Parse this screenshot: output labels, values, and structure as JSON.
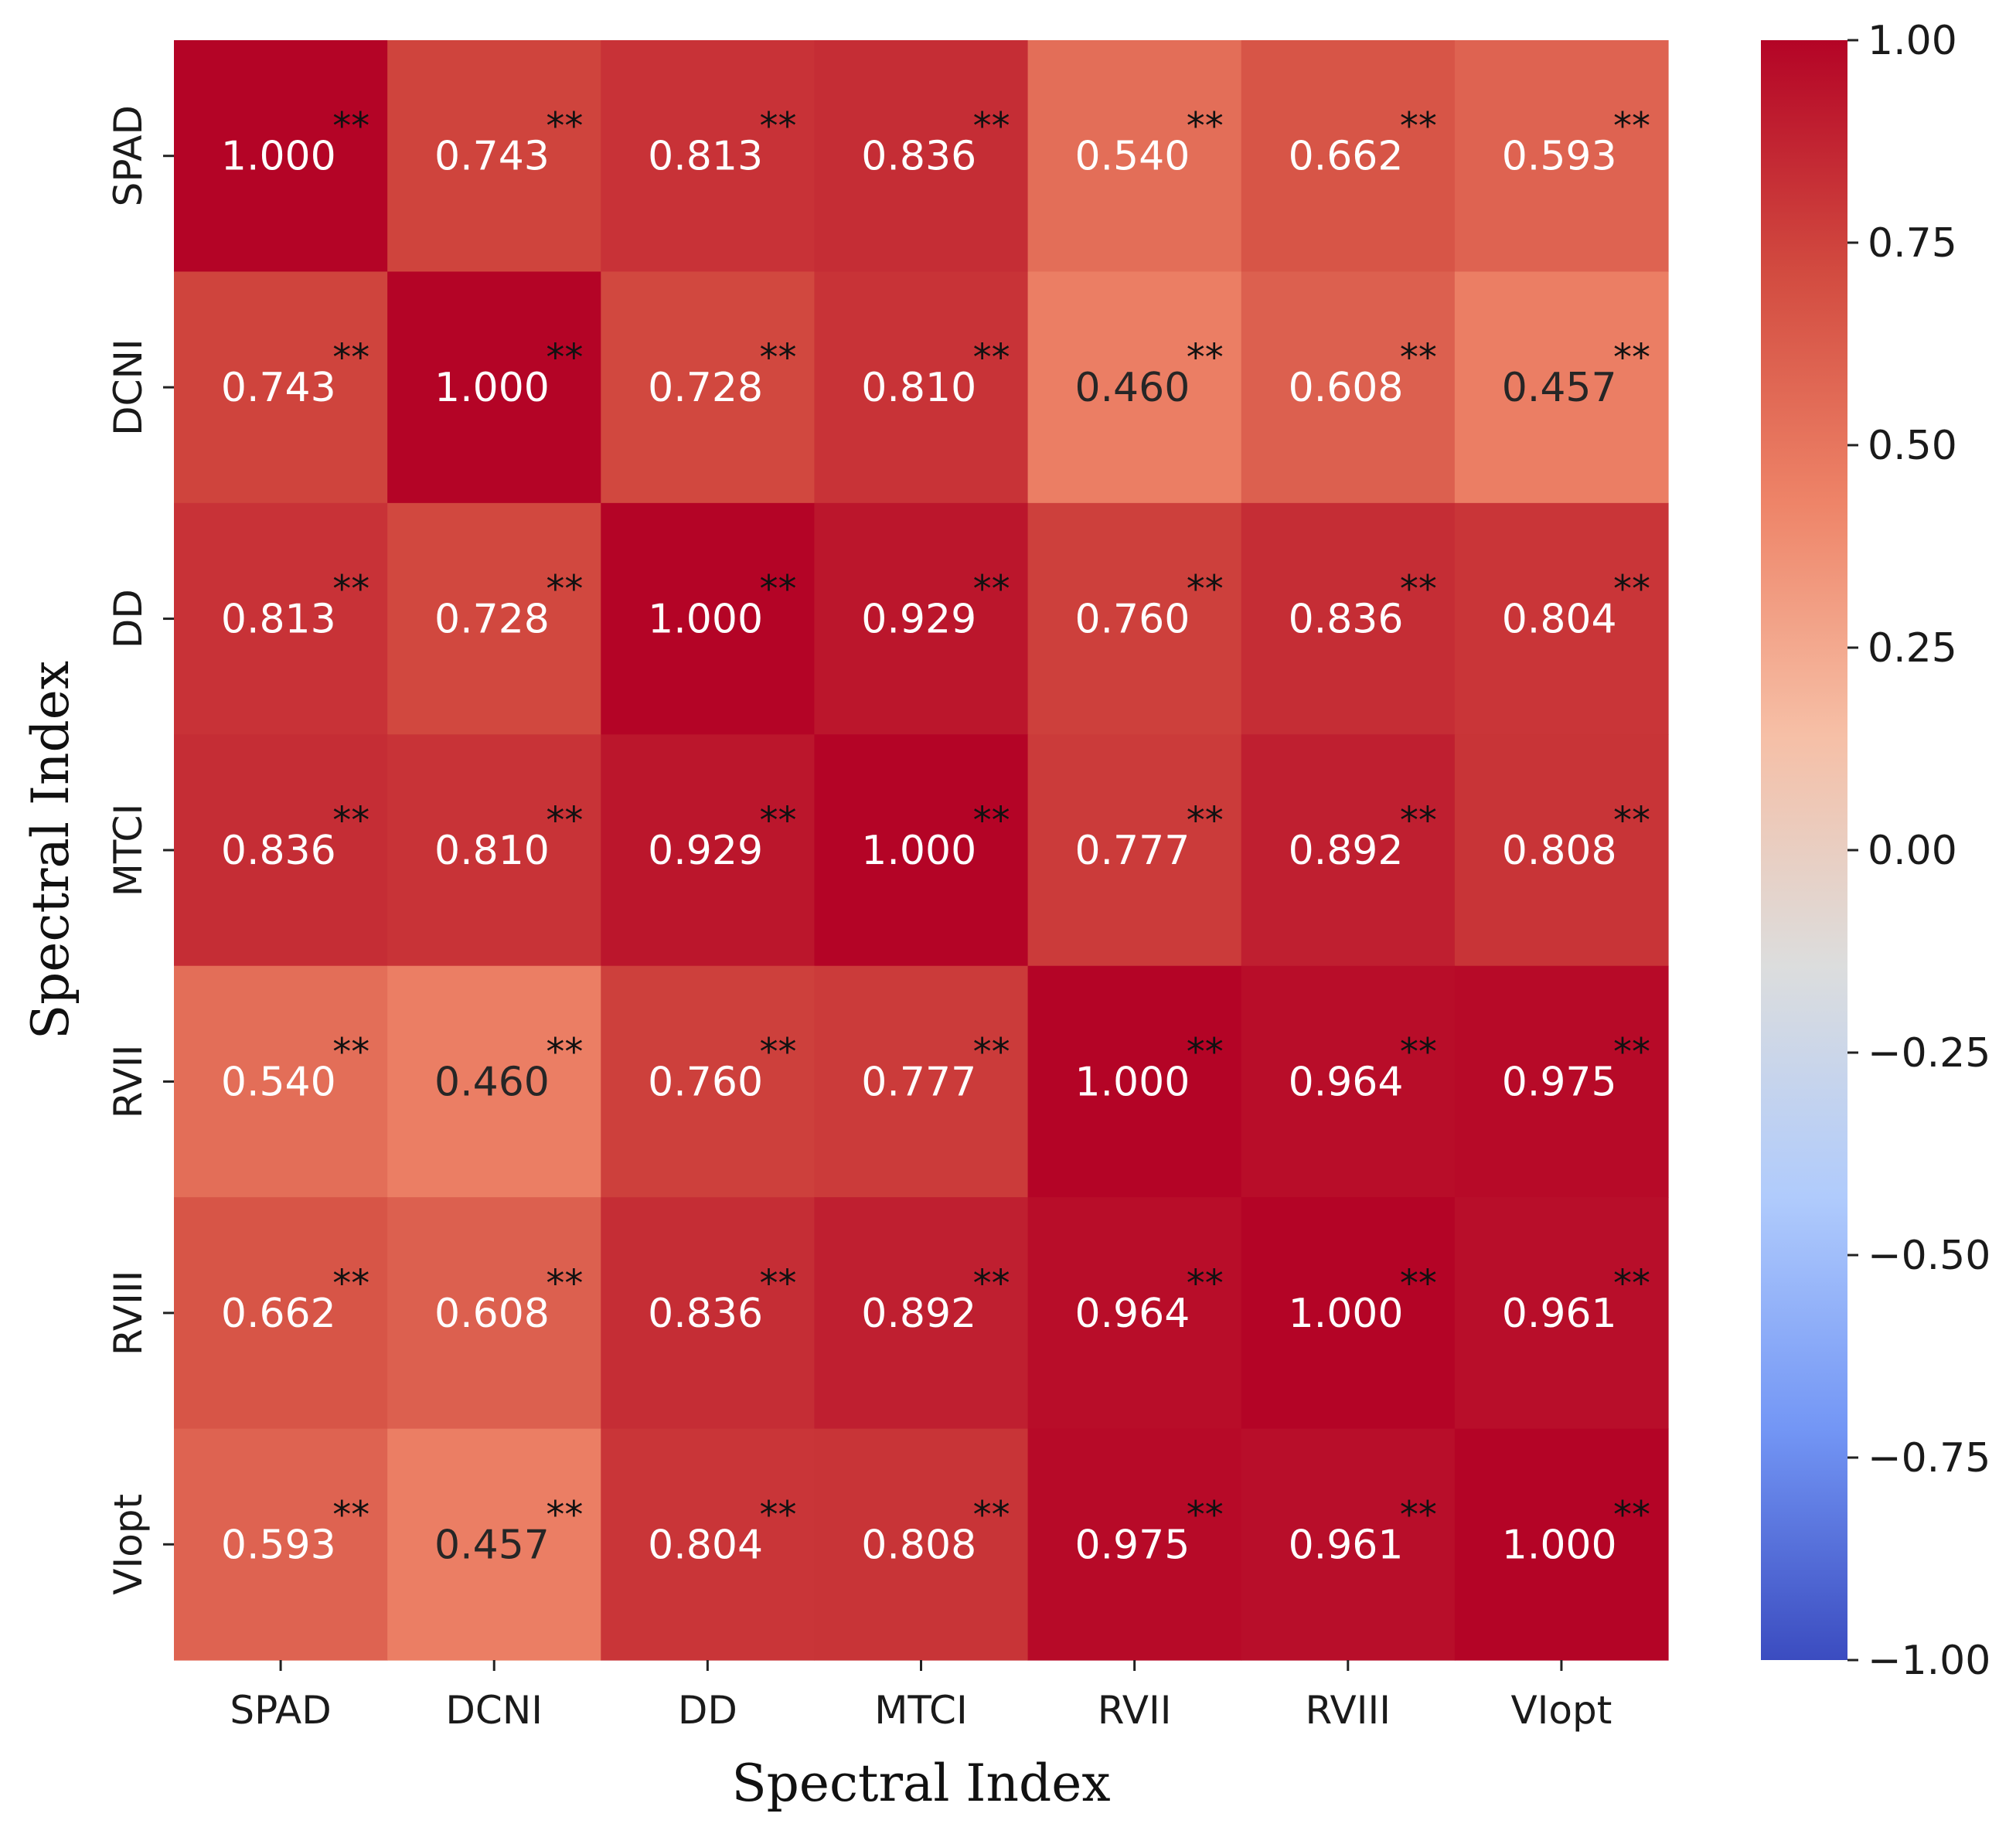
{
  "chart_data": {
    "type": "heatmap",
    "title": "",
    "xlabel": "Spectral Index",
    "ylabel": "Spectral Index",
    "row_labels": [
      "SPAD",
      "DCNI",
      "DD",
      "MTCI",
      "RVII",
      "RVIII",
      "VIopt"
    ],
    "col_labels": [
      "SPAD",
      "DCNI",
      "DD",
      "MTCI",
      "RVII",
      "RVIII",
      "VIopt"
    ],
    "values": [
      [
        1.0,
        0.743,
        0.813,
        0.836,
        0.54,
        0.662,
        0.593
      ],
      [
        0.743,
        1.0,
        0.728,
        0.81,
        0.46,
        0.608,
        0.457
      ],
      [
        0.813,
        0.728,
        1.0,
        0.929,
        0.76,
        0.836,
        0.804
      ],
      [
        0.836,
        0.81,
        0.929,
        1.0,
        0.777,
        0.892,
        0.808
      ],
      [
        0.54,
        0.46,
        0.76,
        0.777,
        1.0,
        0.964,
        0.975
      ],
      [
        0.662,
        0.608,
        0.836,
        0.892,
        0.964,
        1.0,
        0.961
      ],
      [
        0.593,
        0.457,
        0.804,
        0.808,
        0.975,
        0.961,
        1.0
      ]
    ],
    "value_labels": [
      [
        "1.000",
        "0.743",
        "0.813",
        "0.836",
        "0.540",
        "0.662",
        "0.593"
      ],
      [
        "0.743",
        "1.000",
        "0.728",
        "0.810",
        "0.460",
        "0.608",
        "0.457"
      ],
      [
        "0.813",
        "0.728",
        "1.000",
        "0.929",
        "0.760",
        "0.836",
        "0.804"
      ],
      [
        "0.836",
        "0.810",
        "0.929",
        "1.000",
        "0.777",
        "0.892",
        "0.808"
      ],
      [
        "0.540",
        "0.460",
        "0.760",
        "0.777",
        "1.000",
        "0.964",
        "0.975"
      ],
      [
        "0.662",
        "0.608",
        "0.836",
        "0.892",
        "0.964",
        "1.000",
        "0.961"
      ],
      [
        "0.593",
        "0.457",
        "0.804",
        "0.808",
        "0.975",
        "0.961",
        "1.000"
      ]
    ],
    "significance_marker": "**",
    "colorbar": {
      "colormap": "coolwarm",
      "range": [
        -1.0,
        1.0
      ],
      "ticks": [
        1.0,
        0.75,
        0.5,
        0.25,
        0.0,
        -0.25,
        -0.5,
        -0.75,
        -1.0
      ],
      "tick_labels": [
        "1.00",
        "0.75",
        "0.50",
        "0.25",
        "0.00",
        "−0.25",
        "−0.50",
        "−0.75",
        "−1.00"
      ]
    }
  },
  "colors": {
    "text_light": "#ffffff",
    "text_dark": "#262626",
    "colormap_stops": [
      "#3b4cc0",
      "#7396f5",
      "#b0cbfc",
      "#dcdddd",
      "#f6bfa6",
      "#ee8468",
      "#d24b40",
      "#b40426"
    ]
  }
}
